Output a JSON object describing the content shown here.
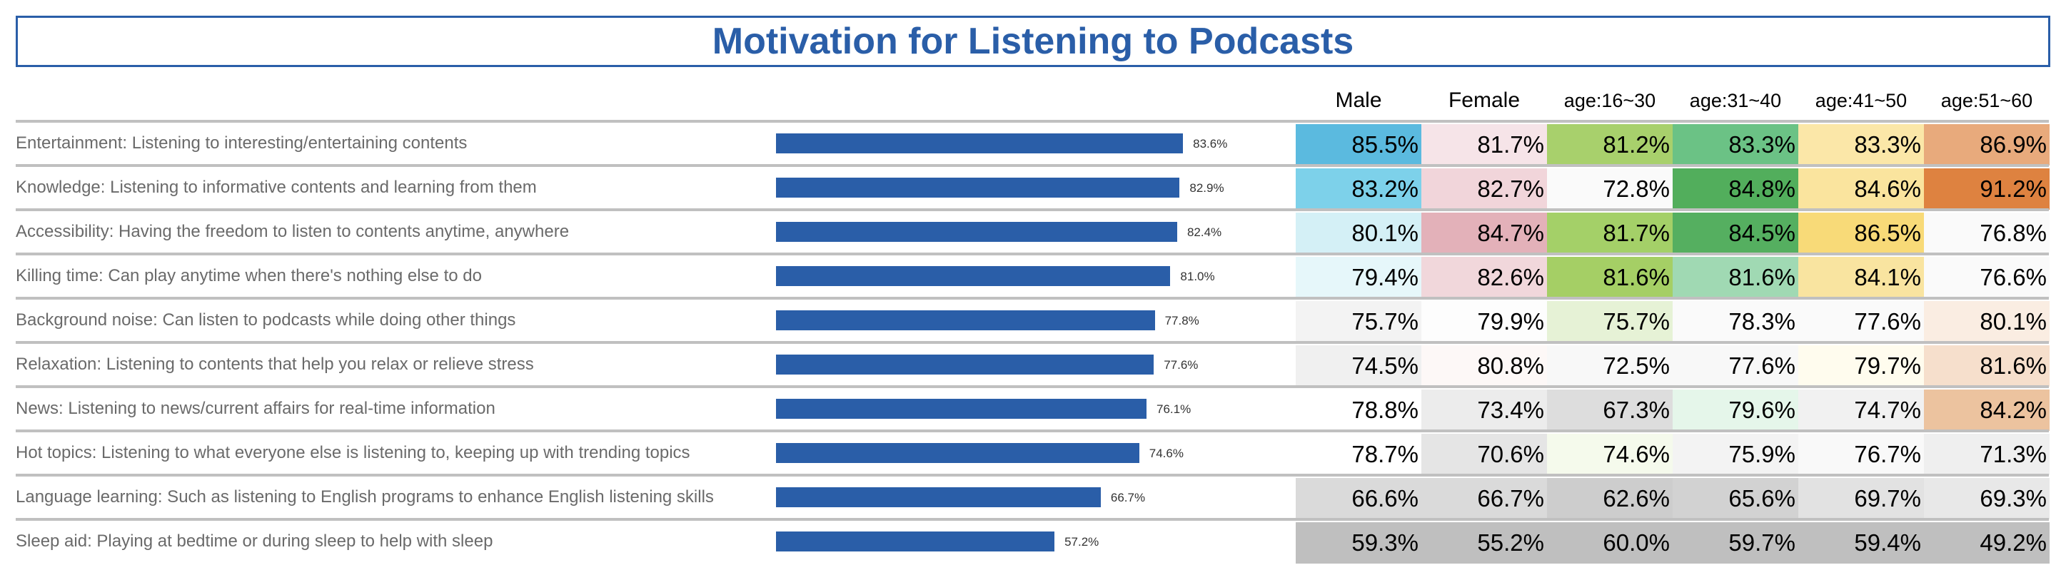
{
  "chart_data": {
    "type": "bar",
    "title": "Motivation for Listening to Podcasts",
    "categories": [
      "Entertainment: Listening to interesting/entertaining contents",
      "Knowledge: Listening to informative contents and learning from them",
      "Accessibility: Having the freedom to listen to contents anytime, anywhere",
      "Killing time: Can play anytime when there's nothing else to do",
      "Background noise: Can listen to podcasts while doing other things",
      "Relaxation: Listening to contents that help you relax or relieve stress",
      "News: Listening to news/current affairs for real-time information",
      "Hot topics: Listening to what everyone else is listening to, keeping up with trending topics",
      "Language learning: Such as listening to English programs to enhance English listening skills",
      "Sleep aid: Playing at bedtime or during sleep to help with sleep"
    ],
    "values": [
      83.6,
      82.9,
      82.4,
      81.0,
      77.8,
      77.6,
      76.1,
      74.6,
      66.7,
      57.2
    ],
    "value_labels": [
      "83.6%",
      "82.9%",
      "82.4%",
      "81.0%",
      "77.8%",
      "77.6%",
      "76.1%",
      "74.6%",
      "66.7%",
      "57.2%"
    ],
    "bar_color": "#2a5ea8",
    "table": {
      "type": "heatmap",
      "columns": [
        "Male",
        "Female",
        "age:16~30",
        "age:31~40",
        "age:41~50",
        "age:51~60"
      ],
      "rows": [
        [
          "85.5%",
          "81.7%",
          "81.2%",
          "83.3%",
          "83.3%",
          "86.9%"
        ],
        [
          "83.2%",
          "82.7%",
          "72.8%",
          "84.8%",
          "84.6%",
          "91.2%"
        ],
        [
          "80.1%",
          "84.7%",
          "81.7%",
          "84.5%",
          "86.5%",
          "76.8%"
        ],
        [
          "79.4%",
          "82.6%",
          "81.6%",
          "81.6%",
          "84.1%",
          "76.6%"
        ],
        [
          "75.7%",
          "79.9%",
          "75.7%",
          "78.3%",
          "77.6%",
          "80.1%"
        ],
        [
          "74.5%",
          "80.8%",
          "72.5%",
          "77.6%",
          "79.7%",
          "81.6%"
        ],
        [
          "78.8%",
          "73.4%",
          "67.3%",
          "79.6%",
          "74.7%",
          "84.2%"
        ],
        [
          "78.7%",
          "70.6%",
          "74.6%",
          "75.9%",
          "76.7%",
          "71.3%"
        ],
        [
          "66.6%",
          "66.7%",
          "62.6%",
          "65.6%",
          "69.7%",
          "69.3%"
        ],
        [
          "59.3%",
          "55.2%",
          "60.0%",
          "59.7%",
          "59.4%",
          "49.2%"
        ]
      ],
      "colors": [
        [
          "#5bbadf",
          "#f6e4e8",
          "#a8d06c",
          "#6bc285",
          "#fbe7a8",
          "#e8aa7c"
        ],
        [
          "#7dd1ea",
          "#f1d5da",
          "#fafafa",
          "#52ae5c",
          "#fae49e",
          "#de8240"
        ],
        [
          "#d4f0f6",
          "#e3b1b9",
          "#a4d068",
          "#55af60",
          "#f8da78",
          "#fafafa"
        ],
        [
          "#e6f7fa",
          "#f1d7db",
          "#a5cf65",
          "#a0d9b3",
          "#f9e4a0",
          "#fafafa"
        ],
        [
          "#f3f3f3",
          "#fdfdfd",
          "#e6f2d6",
          "#fafafa",
          "#fafafa",
          "#faede2"
        ],
        [
          "#f0f0f0",
          "#fdf8f7",
          "#f8f8f8",
          "#f8f8f8",
          "#fffcee",
          "#f6dfcc"
        ],
        [
          "#ffffff",
          "#ececec",
          "#dddddd",
          "#e5f6ea",
          "#f1f1f1",
          "#ecc39f"
        ],
        [
          "#ffffff",
          "#e5e5e5",
          "#f5faec",
          "#f3f3f3",
          "#f9f9f9",
          "#efefef"
        ],
        [
          "#dadada",
          "#dadada",
          "#cdcdcd",
          "#d2d2d2",
          "#e2e2e2",
          "#e8e8e8"
        ],
        [
          "#bfbfbf",
          "#bfbfbf",
          "#bfbfbf",
          "#bfbfbf",
          "#bfbfbf",
          "#bfbfbf"
        ]
      ]
    }
  }
}
